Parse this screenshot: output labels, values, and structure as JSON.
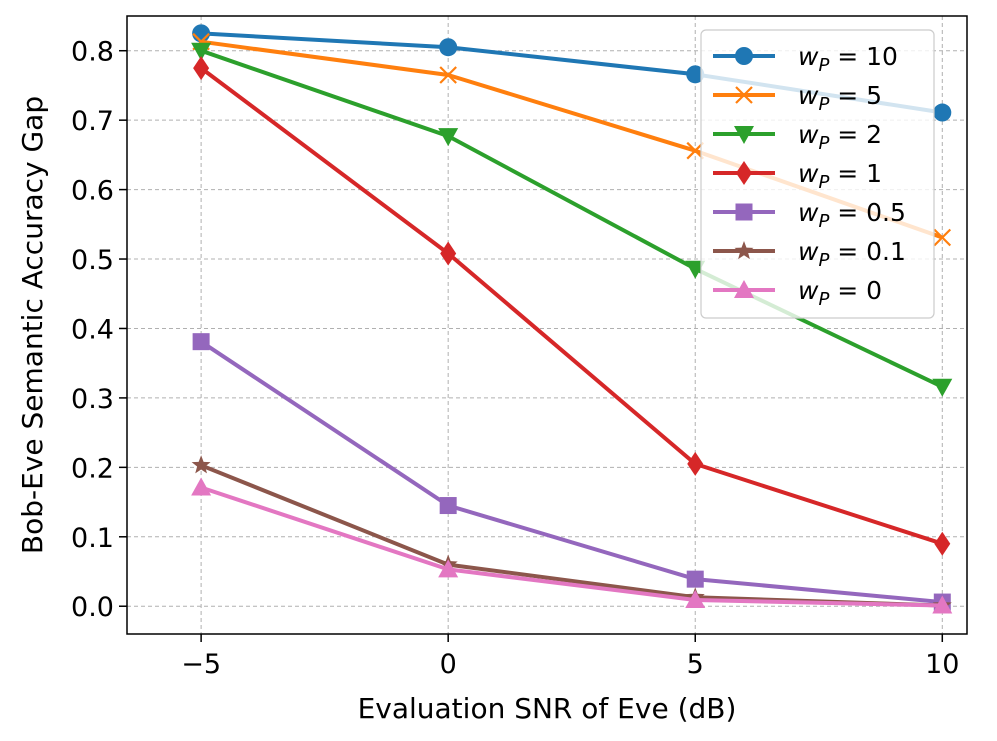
{
  "chart_data": {
    "type": "line",
    "xlabel": "Evaluation SNR of Eve (dB)",
    "ylabel": "Bob-Eve Semantic Accuracy Gap",
    "x": [
      -5,
      0,
      5,
      10
    ],
    "xlim": [
      -6.5,
      10.5
    ],
    "ylim": [
      -0.04,
      0.85
    ],
    "xticks": [
      -5,
      0,
      5,
      10
    ],
    "xtick_labels": [
      "−5",
      "0",
      "5",
      "10"
    ],
    "yticks": [
      0.0,
      0.1,
      0.2,
      0.3,
      0.4,
      0.5,
      0.6,
      0.7,
      0.8
    ],
    "ytick_labels": [
      "0.0",
      "0.1",
      "0.2",
      "0.3",
      "0.4",
      "0.5",
      "0.6",
      "0.7",
      "0.8"
    ],
    "grid": true,
    "legend_position": "top-right",
    "series": [
      {
        "name": "w_P = 10",
        "label_var": "w",
        "label_sub": "P",
        "label_val": "10",
        "color": "#1f77b4",
        "marker": "circle",
        "values": [
          0.825,
          0.805,
          0.766,
          0.711
        ]
      },
      {
        "name": "w_P = 5",
        "label_var": "w",
        "label_sub": "P",
        "label_val": "5",
        "color": "#ff7f0e",
        "marker": "x",
        "values": [
          0.813,
          0.765,
          0.656,
          0.531
        ]
      },
      {
        "name": "w_P = 2",
        "label_var": "w",
        "label_sub": "P",
        "label_val": "2",
        "color": "#2ca02c",
        "marker": "triangle-down",
        "values": [
          0.8,
          0.677,
          0.486,
          0.316
        ]
      },
      {
        "name": "w_P = 1",
        "label_var": "w",
        "label_sub": "P",
        "label_val": "1",
        "color": "#d62728",
        "marker": "diamond",
        "values": [
          0.775,
          0.508,
          0.205,
          0.09
        ]
      },
      {
        "name": "w_P = 0.5",
        "label_var": "w",
        "label_sub": "P",
        "label_val": "0.5",
        "color": "#9467bd",
        "marker": "square",
        "values": [
          0.381,
          0.145,
          0.039,
          0.006
        ]
      },
      {
        "name": "w_P = 0.1",
        "label_var": "w",
        "label_sub": "P",
        "label_val": "0.1",
        "color": "#8c564b",
        "marker": "star",
        "values": [
          0.203,
          0.06,
          0.013,
          0.001
        ]
      },
      {
        "name": "w_P = 0",
        "label_var": "w",
        "label_sub": "P",
        "label_val": "0",
        "color": "#e377c2",
        "marker": "triangle-up",
        "values": [
          0.171,
          0.053,
          0.009,
          0.001
        ]
      }
    ]
  }
}
